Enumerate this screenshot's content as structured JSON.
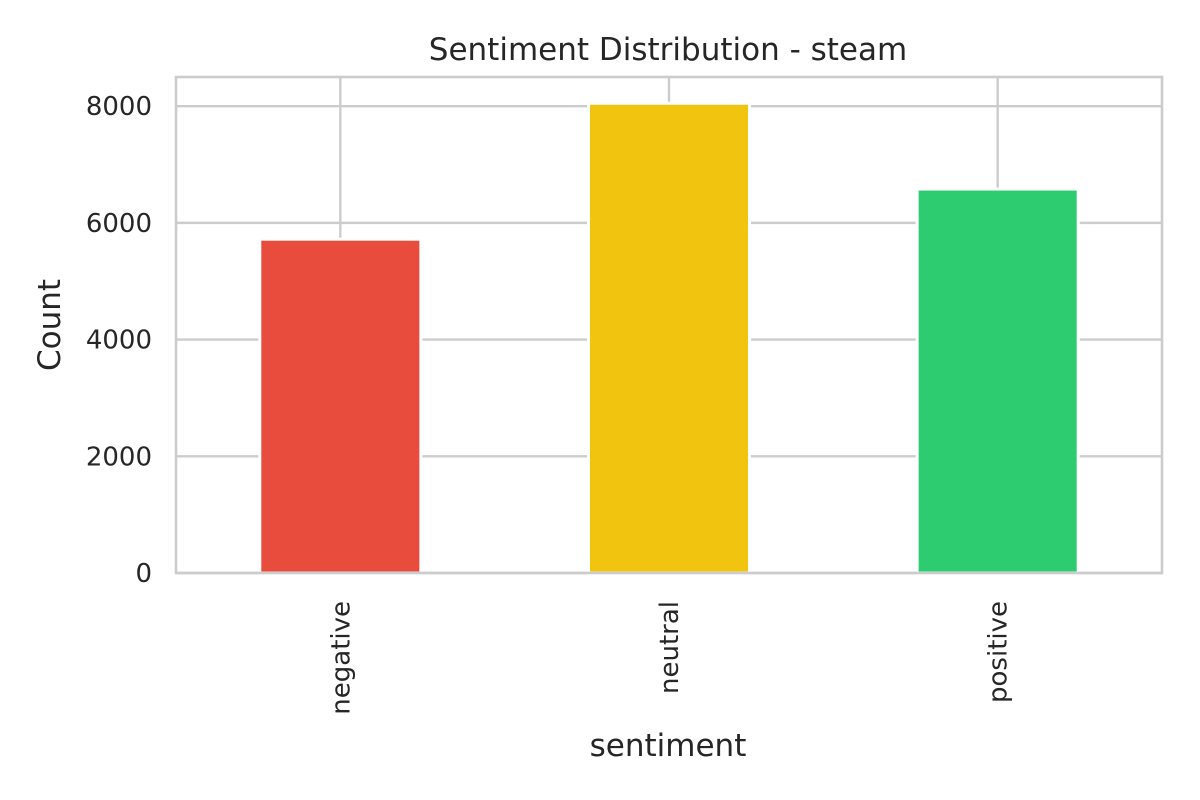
{
  "chart_data": {
    "type": "bar",
    "title": "Sentiment Distribution - steam",
    "xlabel": "sentiment",
    "ylabel": "Count",
    "categories": [
      "negative",
      "neutral",
      "positive"
    ],
    "values": [
      5720,
      8050,
      6580
    ],
    "colors": [
      "#e74c3c",
      "#f1c40f",
      "#2ecc71"
    ],
    "ylim": [
      0,
      8500
    ],
    "yticks": [
      0,
      2000,
      4000,
      6000,
      8000
    ],
    "ytick_labels": [
      "0",
      "2000",
      "4000",
      "6000",
      "8000"
    ],
    "grid": true,
    "legend": "none"
  }
}
